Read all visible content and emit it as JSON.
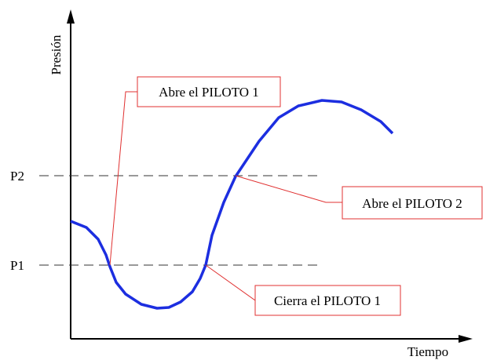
{
  "axes": {
    "y_label": "Presión",
    "x_label": "Tiempo"
  },
  "levels": [
    "P2",
    "P1"
  ],
  "annotations": [
    "Abre el PILOTO 1",
    "Abre el PILOTO 2",
    "Cierra el PILOTO 1"
  ]
}
